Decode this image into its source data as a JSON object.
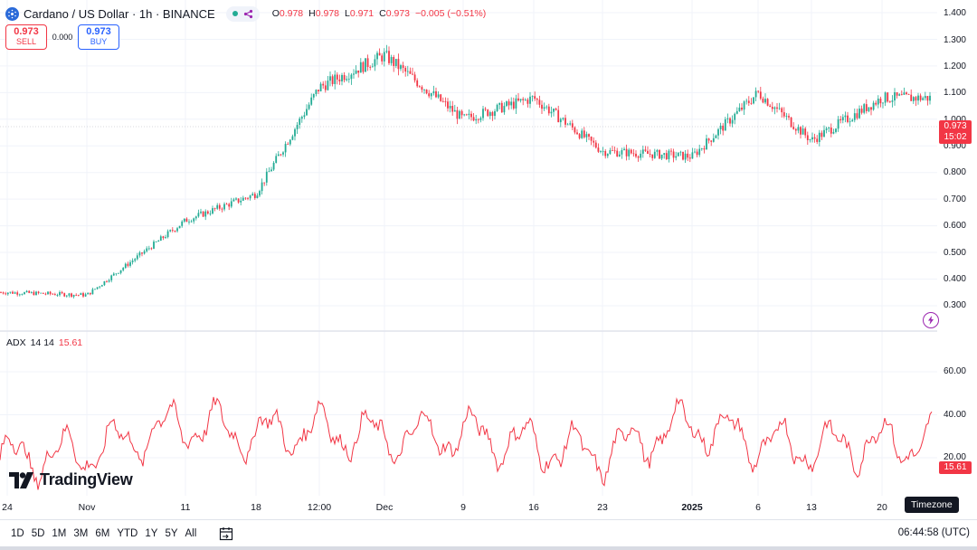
{
  "header": {
    "title": "Cardano / US Dollar · 1h · BINANCE",
    "ohlc": [
      {
        "label": "O",
        "value": "0.978"
      },
      {
        "label": "H",
        "value": "0.978"
      },
      {
        "label": "L",
        "value": "0.971"
      },
      {
        "label": "C",
        "value": "0.973"
      }
    ],
    "change": "−0.005 (−0.51%)"
  },
  "trade": {
    "sell_price": "0.973",
    "sell_label": "SELL",
    "spread": "0.000",
    "buy_price": "0.973",
    "buy_label": "BUY"
  },
  "price_axis": [
    "1.400",
    "1.300",
    "1.200",
    "1.100",
    "1.000",
    "0.900",
    "0.800",
    "0.700",
    "0.600",
    "0.500",
    "0.400",
    "0.300"
  ],
  "price_tag": {
    "price": "0.973",
    "countdown": "15:02"
  },
  "indicator": {
    "name": "ADX",
    "params": "14 14",
    "value": "15.61"
  },
  "indicator_axis": [
    "60.00",
    "40.00",
    "20.00"
  ],
  "time_axis": [
    {
      "label": "24",
      "bold": false
    },
    {
      "label": "Nov",
      "bold": false
    },
    {
      "label": "11",
      "bold": false
    },
    {
      "label": "18",
      "bold": false
    },
    {
      "label": "12:00",
      "bold": false
    },
    {
      "label": "Dec",
      "bold": false
    },
    {
      "label": "9",
      "bold": false
    },
    {
      "label": "16",
      "bold": false
    },
    {
      "label": "23",
      "bold": false
    },
    {
      "label": "2025",
      "bold": true
    },
    {
      "label": "6",
      "bold": false
    },
    {
      "label": "13",
      "bold": false
    },
    {
      "label": "20",
      "bold": false
    }
  ],
  "logo_text": "TradingView",
  "timezone_tooltip": "Timezone",
  "bottom_bar": {
    "ranges": [
      "1D",
      "5D",
      "1M",
      "3M",
      "6M",
      "YTD",
      "1Y",
      "5Y",
      "All"
    ],
    "clock": "06:44:58 (UTC)"
  },
  "colors": {
    "up": "#22ab94",
    "down": "#f23645",
    "adx": "#f23645",
    "grid": "#f0f3fa"
  },
  "chart_data": [
    {
      "type": "line",
      "title": "Cardano / US Dollar · 1h · BINANCE",
      "series": [
        {
          "name": "Cardano / US Dollar",
          "x": [
            "24",
            "Nov",
            "11",
            "18",
            "12:00",
            "Dec",
            "9",
            "16",
            "23",
            "2025",
            "6",
            "13",
            "20"
          ],
          "values": [
            0.35,
            0.34,
            0.62,
            0.72,
            1.12,
            1.24,
            1.0,
            1.08,
            0.88,
            0.86,
            1.1,
            0.92,
            1.08
          ]
        }
      ],
      "ylim": [
        0.25,
        1.45
      ],
      "grid": true
    },
    {
      "type": "line",
      "series": [
        {
          "name": "ADX 14 14",
          "x": [
            "24",
            "Nov",
            "11",
            "18",
            "12:00",
            "Dec",
            "9",
            "16",
            "23",
            "2025",
            "6",
            "13",
            "20"
          ],
          "values": [
            25,
            30,
            55,
            45,
            50,
            42,
            46,
            36,
            28,
            55,
            38,
            34,
            38
          ]
        }
      ],
      "ylim": [
        0,
        75
      ]
    }
  ]
}
